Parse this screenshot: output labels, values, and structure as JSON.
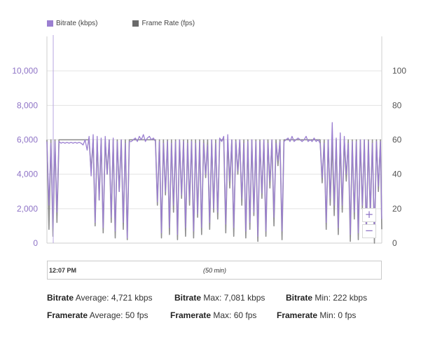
{
  "legend": {
    "bitrate": {
      "label": "Bitrate (kbps)",
      "color": "#9b7fd1"
    },
    "framerate": {
      "label": "Frame Rate (fps)",
      "color": "#6a6a6a"
    }
  },
  "chart_data": {
    "type": "line",
    "title": "",
    "x_range_minutes": [
      0,
      50
    ],
    "y_left": {
      "ticks": [
        "0",
        "2,000",
        "4,000",
        "6,000",
        "8,000",
        "10,000"
      ],
      "range": [
        0,
        12000
      ],
      "color": "#8e73c6"
    },
    "y_right": {
      "ticks": [
        "0",
        "20",
        "40",
        "60",
        "80",
        "100"
      ],
      "range": [
        0,
        120
      ],
      "color": "#555555"
    },
    "grid": true,
    "series": [
      {
        "name": "Bitrate (kbps)",
        "color": "#9b7fd1",
        "x": [
          0,
          0.3,
          0.6,
          0.9,
          1.2,
          1.5,
          1.8,
          2.1,
          2.4,
          2.7,
          3.0,
          3.3,
          3.6,
          3.9,
          4.2,
          4.5,
          4.8,
          5.1,
          5.4,
          5.7,
          6.0,
          6.3,
          6.6,
          6.9,
          7.2,
          7.5,
          7.8,
          8.1,
          8.4,
          8.7,
          9.0,
          9.3,
          9.6,
          9.9,
          10.2,
          10.5,
          10.8,
          11.1,
          11.4,
          11.7,
          12.0,
          12.3,
          12.6,
          12.9,
          13.2,
          13.5,
          13.8,
          14.1,
          14.4,
          14.7,
          15.0,
          15.3,
          15.6,
          15.9,
          16.2,
          16.5,
          16.8,
          17.1,
          17.4,
          17.7,
          18.0,
          18.3,
          18.6,
          18.9,
          19.2,
          19.5,
          19.8,
          20.1,
          20.4,
          20.7,
          21.0,
          21.3,
          21.6,
          21.9,
          22.2,
          22.5,
          22.8,
          23.1,
          23.4,
          23.7,
          24.0,
          24.3,
          24.6,
          24.9,
          25.2,
          25.5,
          25.8,
          26.1,
          26.4,
          26.7,
          27.0,
          27.3,
          27.6,
          27.9,
          28.2,
          28.5,
          28.8,
          29.1,
          29.4,
          29.7,
          30.0,
          30.3,
          30.6,
          30.9,
          31.2,
          31.5,
          31.8,
          32.1,
          32.4,
          32.7,
          33.0,
          33.3,
          33.6,
          33.9,
          34.2,
          34.5,
          34.8,
          35.1,
          35.4,
          35.7,
          36.0,
          36.3,
          36.6,
          36.9,
          37.2,
          37.5,
          37.8,
          38.1,
          38.4,
          38.7,
          39.0,
          39.3,
          39.6,
          39.9,
          40.2,
          40.5,
          40.8,
          41.1,
          41.4,
          41.7,
          42.0,
          42.3,
          42.6,
          42.9,
          43.2,
          43.5,
          43.8,
          44.1,
          44.4,
          44.7,
          45.0,
          45.3,
          45.6,
          45.9,
          46.2,
          46.5,
          46.8,
          47.1,
          47.4,
          47.7,
          48.0,
          48.3,
          48.6,
          48.9,
          49.2,
          49.5,
          49.8,
          50.0
        ],
        "values": [
          5900,
          2200,
          5800,
          900,
          5900,
          1800,
          5900,
          5800,
          5850,
          5800,
          5850,
          5800,
          5850,
          5800,
          5850,
          5800,
          5850,
          5800,
          5700,
          6000,
          5400,
          6200,
          3900,
          6300,
          1200,
          6200,
          2500,
          6100,
          900,
          6200,
          4000,
          6000,
          1500,
          6100,
          700,
          5900,
          3000,
          6000,
          1200,
          5800,
          300,
          5900,
          5900,
          6000,
          6100,
          5900,
          6200,
          6000,
          6300,
          5900,
          6100,
          6200,
          6000,
          6100,
          5900,
          2400,
          5900,
          600,
          5800,
          3000,
          5900,
          900,
          5800,
          2200,
          5900,
          500,
          6000,
          2800,
          5900,
          900,
          5800,
          2500,
          5900,
          700,
          5800,
          1700,
          5900,
          900,
          5800,
          4000,
          5700,
          1200,
          6000,
          2000,
          5800,
          1800,
          6100,
          5900,
          6200,
          1100,
          6300,
          3600,
          6000,
          900,
          5900,
          4200,
          6000,
          2600,
          5800,
          700,
          5900,
          1200,
          6000,
          1800,
          5900,
          400,
          5900,
          2900,
          6000,
          700,
          5800,
          3600,
          6000,
          1500,
          5800,
          4800,
          5900,
          700,
          5900,
          6000,
          6100,
          5900,
          6200,
          5900,
          6000,
          6100,
          6000,
          5900,
          6000,
          6200,
          5900,
          6000,
          5900,
          6100,
          5900,
          6000,
          5800,
          3800,
          5800,
          1200,
          6000,
          2600,
          7000,
          2200,
          6100,
          900,
          6400,
          2200,
          6200,
          4000,
          5800,
          500,
          5900,
          1800,
          5900,
          600,
          6000,
          2200,
          6000,
          700,
          5900,
          1800,
          5800,
          500,
          5900,
          3300,
          5900,
          1400
        ],
        "max": 7081,
        "min": 222,
        "avg": 4721
      },
      {
        "name": "Frame Rate (fps)",
        "color": "#6a6a6a",
        "x": [
          0,
          0.3,
          0.6,
          0.9,
          1.2,
          1.5,
          1.8,
          2.1,
          2.4,
          2.7,
          3.0,
          3.3,
          3.6,
          3.9,
          4.2,
          4.5,
          4.8,
          5.1,
          5.4,
          5.7,
          6.0,
          6.3,
          6.6,
          6.9,
          7.2,
          7.5,
          7.8,
          8.1,
          8.4,
          8.7,
          9.0,
          9.3,
          9.6,
          9.9,
          10.2,
          10.5,
          10.8,
          11.1,
          11.4,
          11.7,
          12.0,
          12.3,
          12.6,
          12.9,
          13.2,
          13.5,
          13.8,
          14.1,
          14.4,
          14.7,
          15.0,
          15.3,
          15.6,
          15.9,
          16.2,
          16.5,
          16.8,
          17.1,
          17.4,
          17.7,
          18.0,
          18.3,
          18.6,
          18.9,
          19.2,
          19.5,
          19.8,
          20.1,
          20.4,
          20.7,
          21.0,
          21.3,
          21.6,
          21.9,
          22.2,
          22.5,
          22.8,
          23.1,
          23.4,
          23.7,
          24.0,
          24.3,
          24.6,
          24.9,
          25.2,
          25.5,
          25.8,
          26.1,
          26.4,
          26.7,
          27.0,
          27.3,
          27.6,
          27.9,
          28.2,
          28.5,
          28.8,
          29.1,
          29.4,
          29.7,
          30.0,
          30.3,
          30.6,
          30.9,
          31.2,
          31.5,
          31.8,
          32.1,
          32.4,
          32.7,
          33.0,
          33.3,
          33.6,
          33.9,
          34.2,
          34.5,
          34.8,
          35.1,
          35.4,
          35.7,
          36.0,
          36.3,
          36.6,
          36.9,
          37.2,
          37.5,
          37.8,
          38.1,
          38.4,
          38.7,
          39.0,
          39.3,
          39.6,
          39.9,
          40.2,
          40.5,
          40.8,
          41.1,
          41.4,
          41.7,
          42.0,
          42.3,
          42.6,
          42.9,
          43.2,
          43.5,
          43.8,
          44.1,
          44.4,
          44.7,
          45.0,
          45.3,
          45.6,
          45.9,
          46.2,
          46.5,
          46.8,
          47.1,
          47.4,
          47.7,
          48.0,
          48.3,
          48.6,
          48.9,
          49.2,
          49.5,
          49.8,
          50.0
        ],
        "values": [
          60,
          8,
          60,
          4,
          60,
          12,
          60,
          60,
          60,
          60,
          60,
          60,
          60,
          60,
          60,
          60,
          60,
          60,
          60,
          60,
          60,
          60,
          42,
          60,
          10,
          60,
          25,
          60,
          6,
          60,
          40,
          60,
          12,
          60,
          3,
          60,
          30,
          60,
          8,
          60,
          2,
          60,
          60,
          60,
          60,
          60,
          60,
          60,
          60,
          60,
          60,
          60,
          60,
          60,
          60,
          22,
          60,
          3,
          60,
          28,
          60,
          5,
          60,
          18,
          60,
          2,
          60,
          26,
          60,
          4,
          60,
          22,
          60,
          3,
          60,
          15,
          60,
          5,
          60,
          38,
          60,
          8,
          60,
          18,
          60,
          14,
          60,
          60,
          60,
          6,
          60,
          32,
          60,
          4,
          60,
          40,
          60,
          22,
          60,
          3,
          60,
          8,
          60,
          16,
          60,
          1,
          60,
          26,
          60,
          4,
          60,
          32,
          60,
          10,
          60,
          45,
          60,
          2,
          60,
          60,
          60,
          60,
          60,
          60,
          60,
          60,
          60,
          60,
          60,
          60,
          60,
          60,
          60,
          60,
          60,
          60,
          60,
          35,
          60,
          8,
          60,
          22,
          60,
          16,
          60,
          5,
          60,
          18,
          60,
          36,
          60,
          1,
          60,
          14,
          60,
          2,
          60,
          20,
          60,
          4,
          60,
          16,
          60,
          0,
          60,
          30,
          60,
          8
        ],
        "max": 60,
        "min": 0,
        "avg": 50
      }
    ]
  },
  "zoom": {
    "in_label": "+",
    "out_label": "−"
  },
  "timeline": {
    "start_label": "12:07 PM",
    "duration_label": "(50 min)"
  },
  "stats": {
    "bitrate": {
      "name": "Bitrate",
      "average_label": "Average:",
      "average_value": "4,721 kbps",
      "max_label": "Max:",
      "max_value": "7,081 kbps",
      "min_label": "Min:",
      "min_value": "222 kbps"
    },
    "framerate": {
      "name": "Framerate",
      "average_label": "Average:",
      "average_value": "50 fps",
      "max_label": "Max:",
      "max_value": "60 fps",
      "min_label": "Min:",
      "min_value": "0 fps"
    }
  }
}
